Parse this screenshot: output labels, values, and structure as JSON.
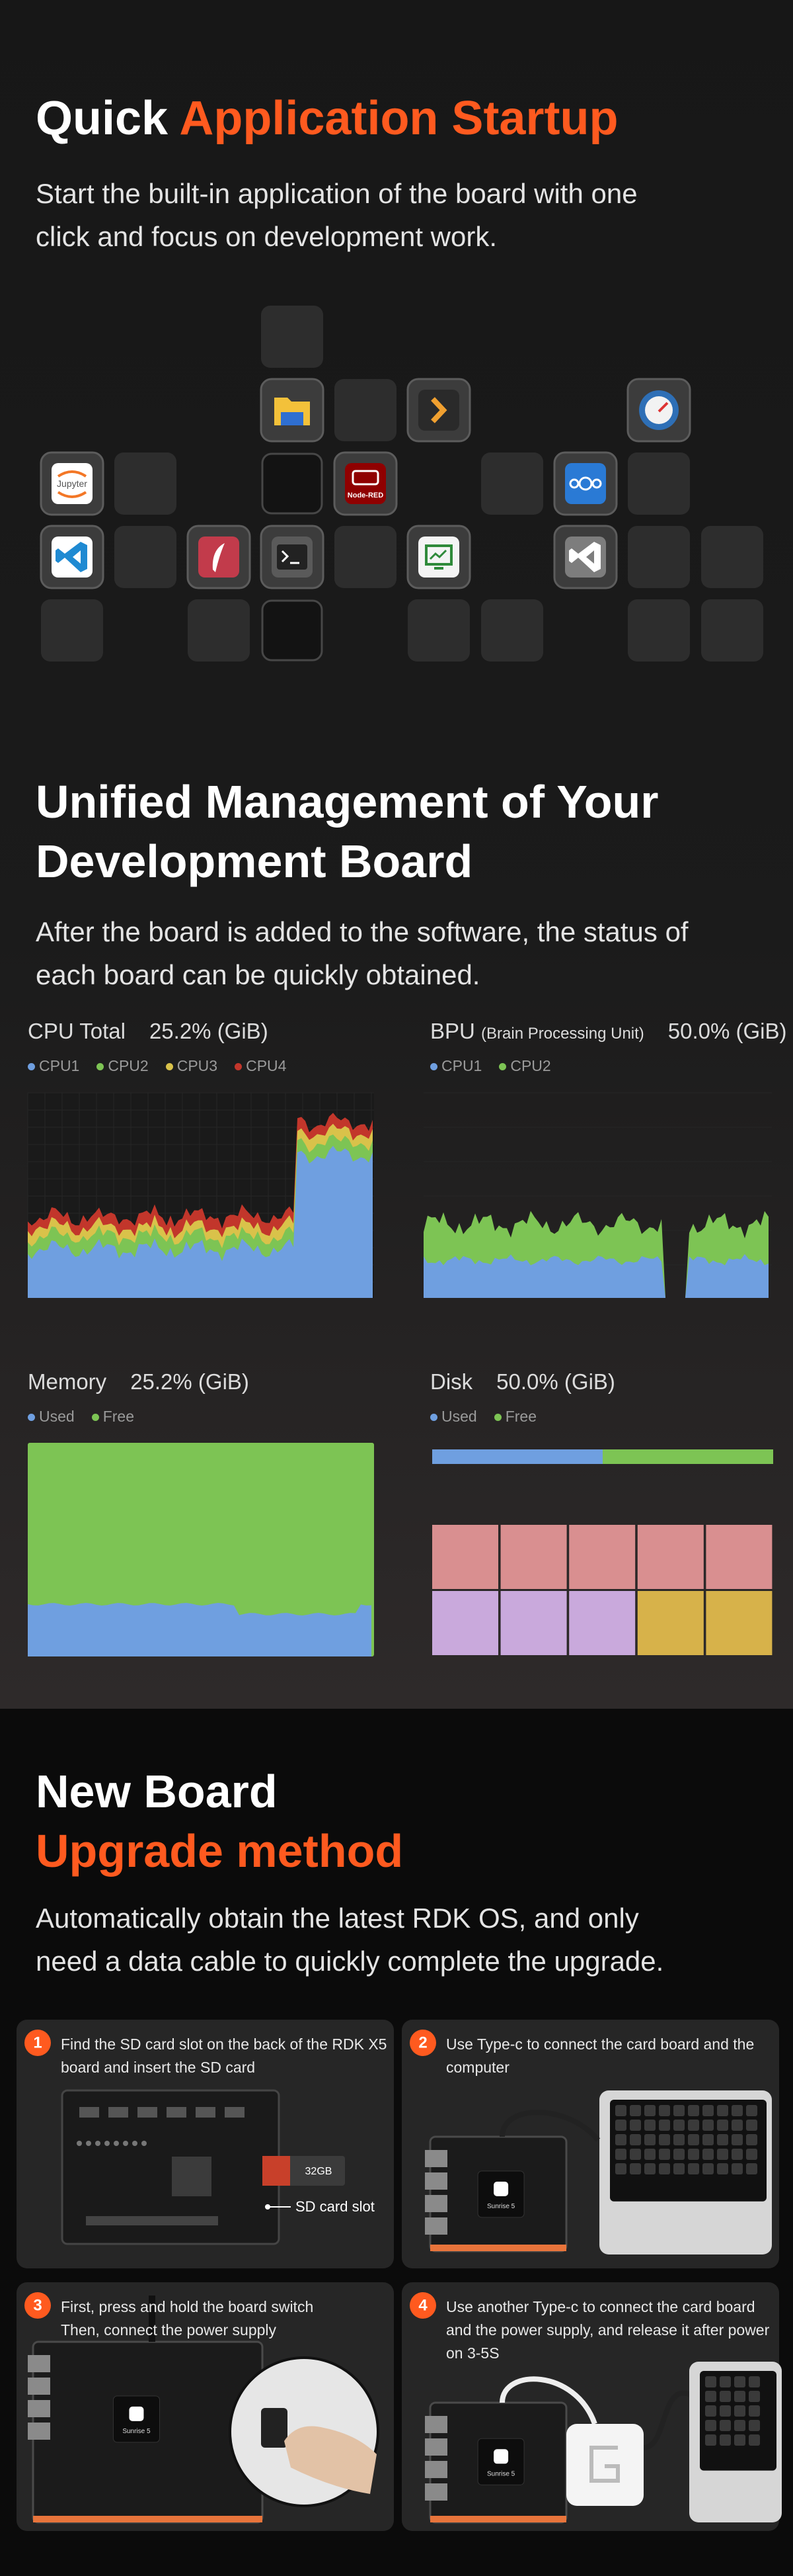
{
  "startup": {
    "title": {
      "plain": "Quick",
      "accent": "Application Startup"
    },
    "subtitle": [
      "Start the built-in application of the board with one",
      "click and focus on development work."
    ],
    "app_labels": {
      "jupyter": "Jupyter",
      "nodered": "Node-RED"
    }
  },
  "management": {
    "title": [
      "Unified Management of Your",
      "Development Board"
    ],
    "subtitle": [
      "After the board is added to the software, the status of",
      "each board can be quickly obtained."
    ],
    "panels": [
      {
        "name": "CPU Total",
        "value": "25.2% (GiB)",
        "legend": [
          {
            "name": "CPU1",
            "color": "#6f9fe0"
          },
          {
            "name": "CPU2",
            "color": "#7dc454"
          },
          {
            "name": "CPU3",
            "color": "#d9c24a"
          },
          {
            "name": "CPU4",
            "color": "#c2362b"
          }
        ]
      },
      {
        "name": "BPU",
        "note": "(Brain Processing Unit)",
        "value": "50.0% (GiB)",
        "legend": [
          {
            "name": "CPU1",
            "color": "#6f9fe0"
          },
          {
            "name": "CPU2",
            "color": "#7dc454"
          }
        ]
      },
      {
        "name": "Memory",
        "value": "25.2% (GiB)",
        "legend": [
          {
            "name": "Used",
            "color": "#6f9fe0"
          },
          {
            "name": "Free",
            "color": "#7dc454"
          }
        ]
      },
      {
        "name": "Disk",
        "value": "50.0% (GiB)",
        "legend": [
          {
            "name": "Used",
            "color": "#6f9fe0"
          },
          {
            "name": "Free",
            "color": "#7dc454"
          }
        ]
      }
    ]
  },
  "upgrade": {
    "title": {
      "line1": "New Board",
      "line2": "Upgrade method"
    },
    "subtitle": [
      "Automatically obtain the latest RDK OS, and only",
      "need a data cable to quickly complete the upgrade."
    ],
    "chip_label": "Sunrise 5",
    "steps": [
      {
        "number": "1",
        "text": [
          "Find the SD card slot on the back of the RDK X5",
          "board and insert the SD card"
        ],
        "card_label": "32GB",
        "slot_label": "SD card slot"
      },
      {
        "number": "2",
        "text": [
          "Use Type-c to connect the card board and the",
          "computer"
        ]
      },
      {
        "number": "3",
        "text": [
          "First, press and hold the board switch",
          "Then, connect the power supply"
        ]
      },
      {
        "number": "4",
        "text": [
          "Use another Type-c to connect the card board",
          "and the power supply, and release it after power",
          "on 3-5S"
        ]
      }
    ]
  }
}
